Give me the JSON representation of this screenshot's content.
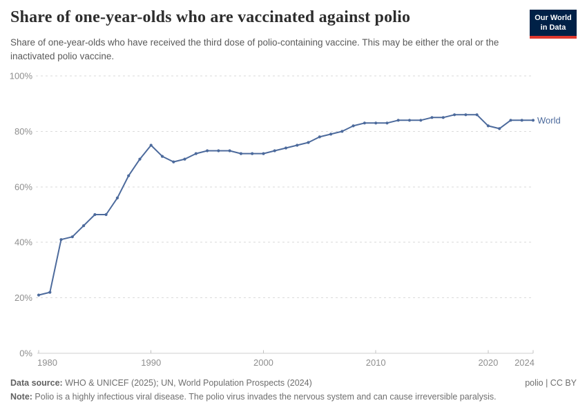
{
  "header": {
    "title": "Share of one-year-olds who are vaccinated against polio",
    "subtitle": "Share of one-year-olds who have received the third dose of polio-containing vaccine. This may be either the oral or the inactivated polio vaccine.",
    "logo": {
      "line1": "Our World",
      "line2": "in Data"
    }
  },
  "chart_data": {
    "type": "line",
    "title": "Share of one-year-olds who are vaccinated against polio",
    "xlabel": "",
    "ylabel": "",
    "ylim": [
      0,
      100
    ],
    "grid": "horizontal-dashed",
    "legend_position": "end-of-line",
    "ytick_values": [
      0,
      20,
      40,
      60,
      80,
      100
    ],
    "ytick_labels": [
      "0%",
      "20%",
      "40%",
      "60%",
      "80%",
      "100%"
    ],
    "xtick_values": [
      1980,
      1990,
      2000,
      2010,
      2020,
      2024
    ],
    "x": [
      1980,
      1981,
      1982,
      1983,
      1984,
      1985,
      1986,
      1987,
      1988,
      1989,
      1990,
      1991,
      1992,
      1993,
      1994,
      1995,
      1996,
      1997,
      1998,
      1999,
      2000,
      2001,
      2002,
      2003,
      2004,
      2005,
      2006,
      2007,
      2008,
      2009,
      2010,
      2011,
      2012,
      2013,
      2014,
      2015,
      2016,
      2017,
      2018,
      2019,
      2020,
      2021,
      2022,
      2023,
      2024
    ],
    "series": [
      {
        "name": "World",
        "color": "#4c6a9c",
        "values": [
          21,
          22,
          41,
          42,
          46,
          50,
          50,
          56,
          64,
          70,
          75,
          71,
          69,
          70,
          72,
          73,
          73,
          73,
          72,
          72,
          72,
          73,
          74,
          75,
          76,
          78,
          79,
          80,
          82,
          83,
          83,
          83,
          84,
          84,
          84,
          85,
          85,
          86,
          86,
          86,
          82,
          81,
          84,
          84,
          84
        ]
      }
    ]
  },
  "footer": {
    "datasource_label": "Data source:",
    "datasource_text": " WHO & UNICEF (2025); UN, World Population Prospects (2024)",
    "note_label": "Note:",
    "note_text": " Polio is a highly infectious viral disease. The polio virus invades the nervous system and can cause irreversible paralysis.",
    "license": "polio | CC BY"
  },
  "colors": {
    "line": "#4c6a9c",
    "grid": "#dadada",
    "axis": "#cfcfcf",
    "tick": "#c0c0c0",
    "tick_label": "#8e8e8e",
    "logo_bg": "#002147",
    "logo_stripe": "#e0392e"
  }
}
